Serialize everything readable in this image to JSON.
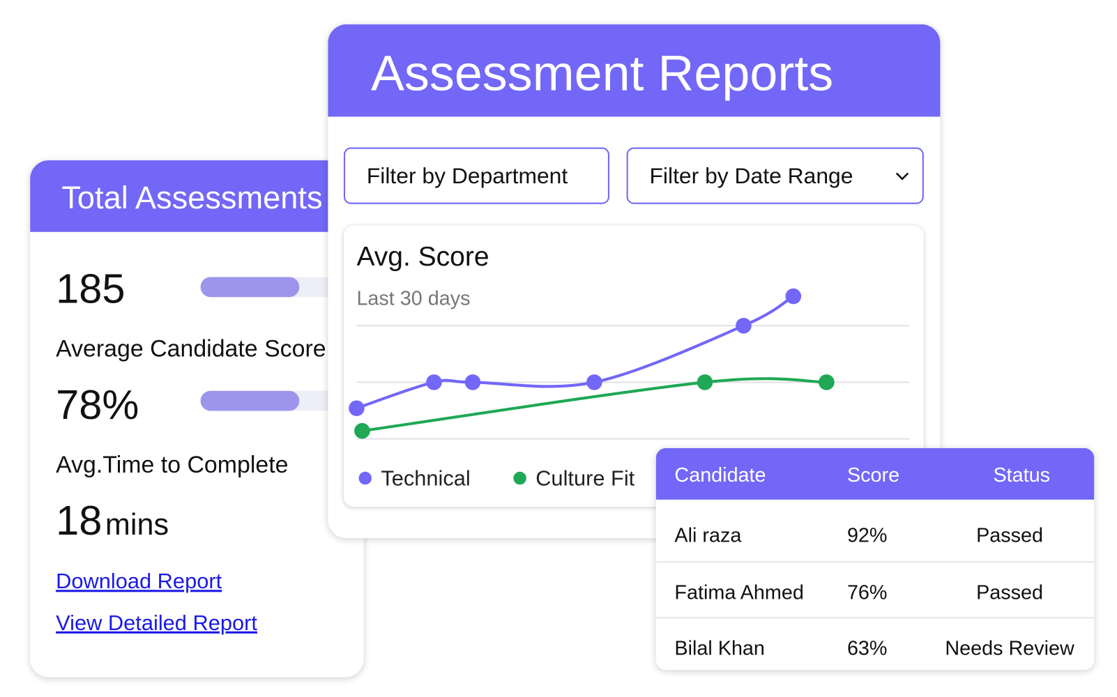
{
  "summary_card": {
    "title": "Total Assessments",
    "total": "185",
    "score_label": "Average Candidate Score",
    "score": "78%",
    "time_label": "Avg.Time to Complete",
    "time_value": "18",
    "time_unit": "mins",
    "links": [
      "Download Report",
      "View Detailed Report"
    ]
  },
  "reports_card": {
    "title": "Assessment Reports",
    "filters": [
      "Filter by Department",
      "Filter by Date Range"
    ]
  },
  "chart_data": {
    "type": "line",
    "title": "Avg. Score",
    "subtitle": "Last 30 days",
    "xlim": [
      0,
      100
    ],
    "ylim": [
      0,
      100
    ],
    "yticks": [
      0,
      50,
      100
    ],
    "grid": true,
    "series": [
      {
        "name": "Technical",
        "color": "#7267f7",
        "x": [
          0,
          14,
          21,
          43,
          70,
          79
        ],
        "values": [
          27,
          50,
          50,
          50,
          100,
          126
        ]
      },
      {
        "name": "Culture Fit",
        "color": "#1fa855",
        "x": [
          1,
          63,
          85
        ],
        "values": [
          7,
          50,
          50
        ]
      }
    ]
  },
  "table": {
    "header": [
      "Candidate",
      "Score",
      "Status"
    ],
    "rows": [
      [
        "Ali raza",
        "92%",
        "Passed"
      ],
      [
        "Fatima Ahmed",
        "76%",
        "Passed"
      ],
      [
        "Bilal Khan",
        "63%",
        "Needs Review"
      ]
    ]
  }
}
